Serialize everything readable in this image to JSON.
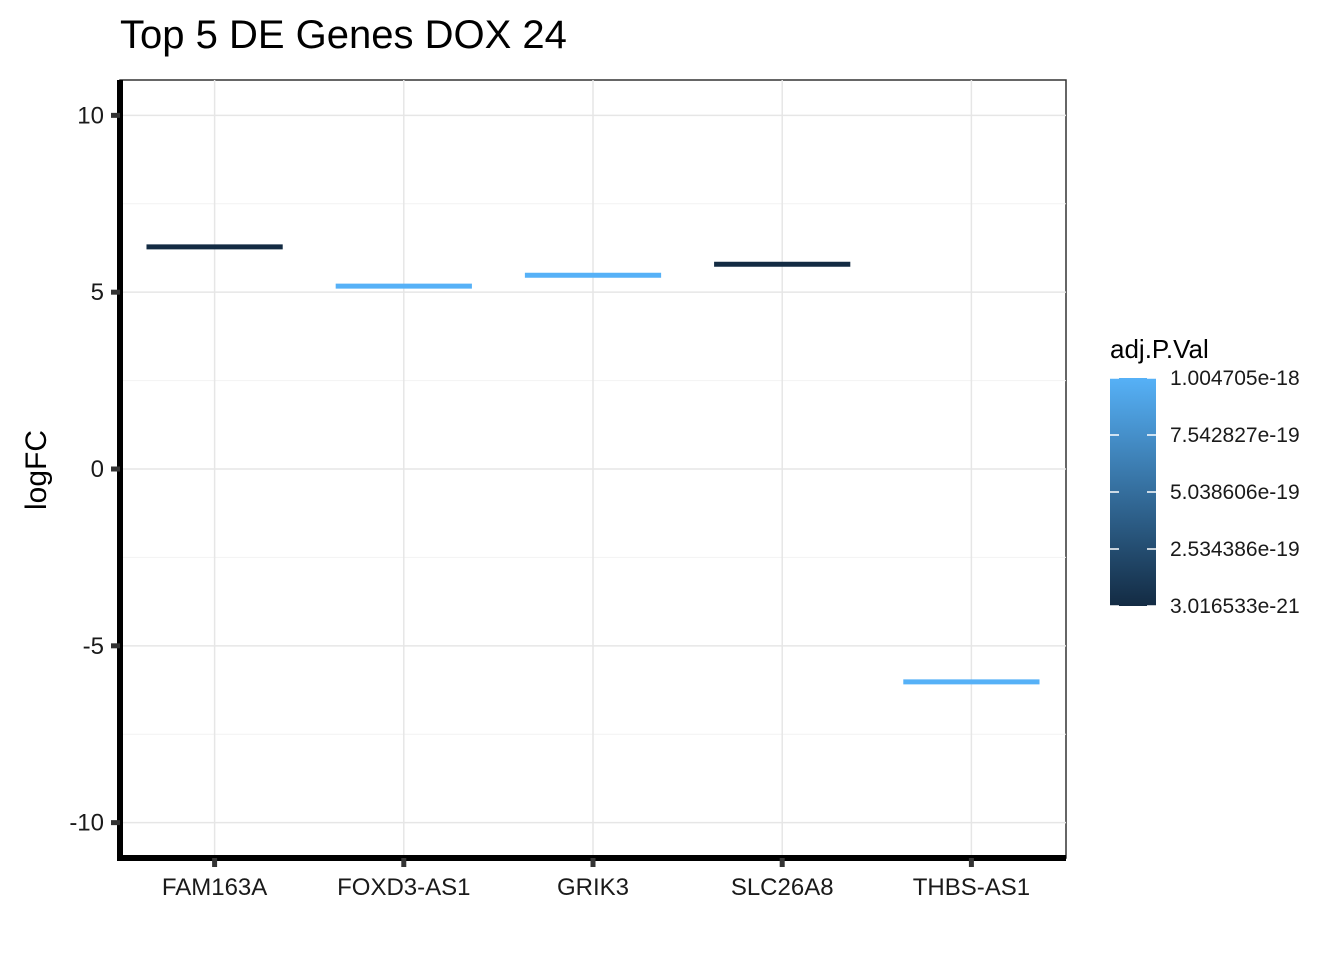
{
  "chart_data": {
    "type": "crossbar",
    "title": "Top 5 DE Genes DOX 24",
    "xlabel": "",
    "ylabel": "logFC",
    "categories": [
      "FAM163A",
      "FOXD3-AS1",
      "GRIK3",
      "SLC26A8",
      "THBS-AS1"
    ],
    "values": [
      6.28,
      5.17,
      5.48,
      5.79,
      -6.02
    ],
    "adj_p_val": [
      3.016533e-21,
      1.004705e-18,
      1.004705e-18,
      3.016533e-21,
      1.004705e-18
    ],
    "ylim": [
      -11,
      11
    ],
    "yticks": [
      -10,
      -5,
      0,
      5,
      10
    ],
    "ytick_labels": [
      "-10",
      "-5",
      "0",
      "5",
      "10"
    ],
    "grid": true,
    "legend": {
      "title": "adj.P.Val",
      "placement": "right",
      "min": 3.016533e-21,
      "max": 1.004705e-18,
      "breaks": [
        3.016533e-21,
        2.534386e-19,
        5.038606e-19,
        7.542827e-19,
        1.004705e-18
      ],
      "labels": [
        "3.016533e-21",
        "2.534386e-19",
        "5.038606e-19",
        "7.542827e-19",
        "1.004705e-18"
      ],
      "low_color": "#132b43",
      "high_color": "#56b1f7"
    }
  }
}
